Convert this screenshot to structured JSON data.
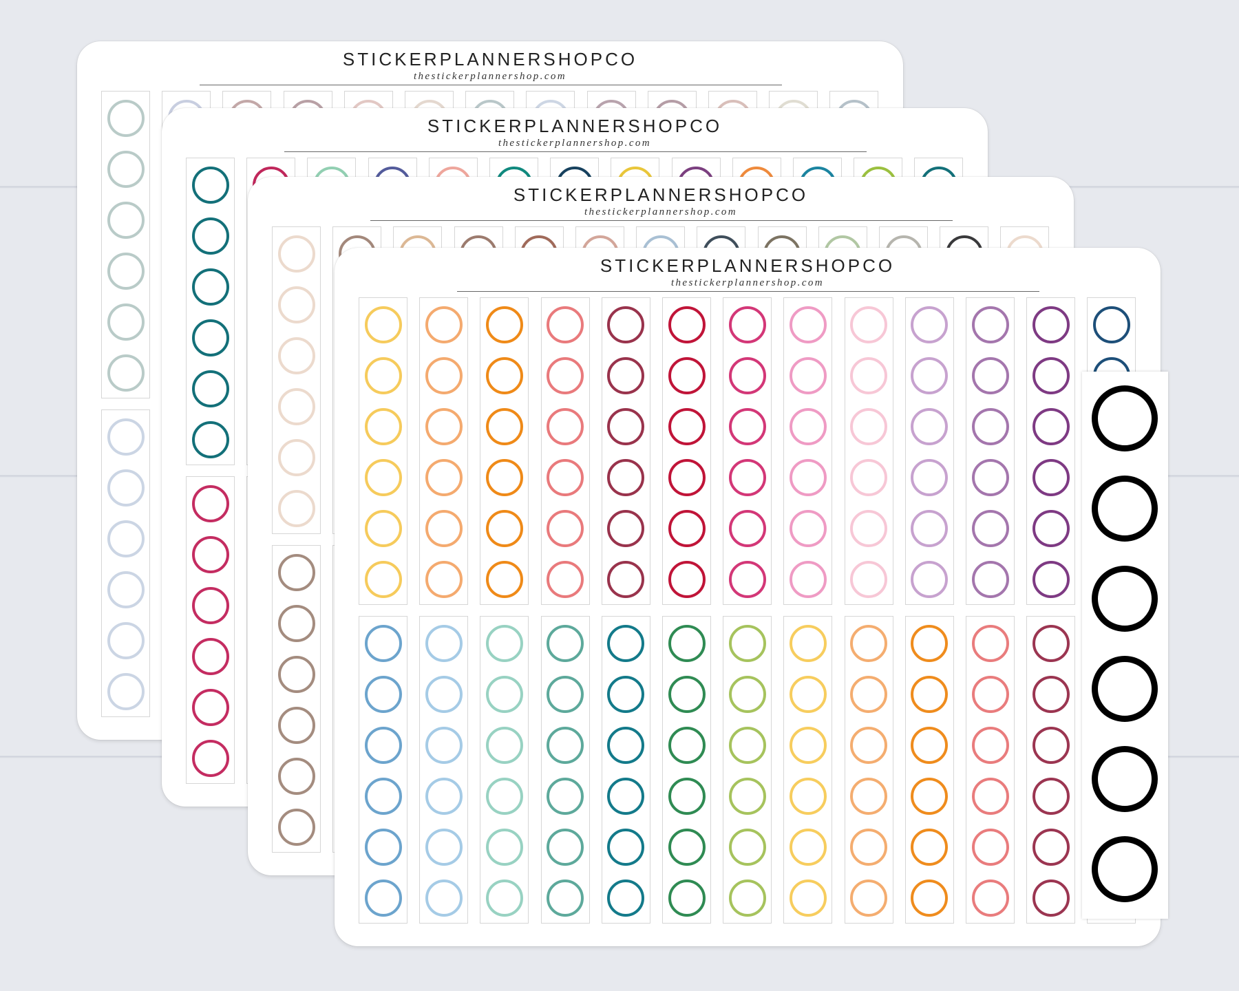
{
  "brand": {
    "name": "STICKERPLANNERSHOPCO",
    "website": "thestickerplannershop.com"
  },
  "sheets": [
    {
      "id": "sheet-1",
      "rows": [
        [
          "#b9cbc8",
          "#c8cee0",
          "#c3a8a8",
          "#b8a0a5",
          "#e2c8c4",
          "#e4d8cf",
          "#b9c7c9",
          "#cdd6e4",
          "#b8a3ad",
          "#b59da6",
          "#d9bfba",
          "#e0ddd2",
          "#b5c1c9"
        ],
        [
          "#cbd5e4",
          "#cbd5e4",
          "#cbd5e4",
          "#cbd5e4",
          "#cbd5e4",
          "#cbd5e4",
          "#cbd5e4",
          "#cbd5e4",
          "#cbd5e4",
          "#cbd5e4",
          "#cbd5e4",
          "#cbd5e4",
          "#cbd5e4"
        ]
      ]
    },
    {
      "id": "sheet-2",
      "rows": [
        [
          "#137079",
          "#c0275b",
          "#92cfb2",
          "#535b9b",
          "#eea69c",
          "#10897e",
          "#17415e",
          "#e9c63a",
          "#7b3f7f",
          "#ee8a3c",
          "#1b84a0",
          "#9bc03f",
          "#137079"
        ],
        [
          "#c42c61",
          "#c42c61",
          "#c42c61",
          "#c42c61",
          "#c42c61",
          "#c42c61",
          "#c42c61",
          "#c42c61",
          "#c42c61",
          "#c42c61",
          "#c42c61",
          "#c42c61",
          "#c42c61"
        ]
      ]
    },
    {
      "id": "sheet-3",
      "rows": [
        [
          "#ecdacd",
          "#a3887b",
          "#dcb895",
          "#9c7b6e",
          "#a06a5a",
          "#d3a69a",
          "#a9c0d4",
          "#3f4e5b",
          "#7c7362",
          "#b1c7a3",
          "#b6b5ae",
          "#39393b",
          "#ecdacd"
        ],
        [
          "#a48c7f",
          "#a48c7f",
          "#a48c7f",
          "#a48c7f",
          "#a48c7f",
          "#a48c7f",
          "#a48c7f",
          "#a48c7f",
          "#a48c7f",
          "#a48c7f",
          "#a48c7f",
          "#a48c7f",
          "#a48c7f"
        ]
      ]
    },
    {
      "id": "sheet-4",
      "rows": [
        [
          "#f6cb5c",
          "#f4aa6f",
          "#ef8a18",
          "#e97a7c",
          "#99334c",
          "#c01438",
          "#d33777",
          "#ef9bc4",
          "#f7c7d6",
          "#c7a2cf",
          "#a476ad",
          "#7e3a83",
          "#1d4f79"
        ],
        [
          "#6ca4cd",
          "#a5cbe6",
          "#98d2c2",
          "#5da99b",
          "#137a8a",
          "#2f8b53",
          "#a6c35d",
          "#f7cd5e",
          "#f4ad70",
          "#ef8c1d",
          "#e97c7d",
          "#9b3551",
          "#1d4f79"
        ]
      ]
    }
  ],
  "black_strip": {
    "color": "#000000",
    "count": 6
  }
}
